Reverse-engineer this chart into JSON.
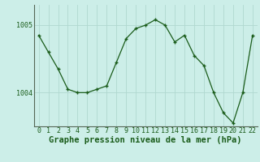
{
  "x": [
    0,
    1,
    2,
    3,
    4,
    5,
    6,
    7,
    8,
    9,
    10,
    11,
    12,
    13,
    14,
    15,
    16,
    17,
    18,
    19,
    20,
    21,
    22
  ],
  "y": [
    1004.85,
    1004.6,
    1004.35,
    1004.05,
    1004.0,
    1004.0,
    1004.05,
    1004.1,
    1004.45,
    1004.8,
    1004.95,
    1005.0,
    1005.08,
    1005.0,
    1004.75,
    1004.85,
    1004.55,
    1004.4,
    1004.0,
    1003.7,
    1003.55,
    1004.0,
    1004.85
  ],
  "line_color": "#1a5c1a",
  "marker": "+",
  "bg_color": "#cceee8",
  "grid_color": "#b0d8d0",
  "xlabel": "Graphe pression niveau de la mer (hPa)",
  "xlabel_fontsize": 7.5,
  "yticks": [
    1004,
    1005
  ],
  "ylim": [
    1003.5,
    1005.3
  ],
  "xlim": [
    -0.5,
    22.5
  ],
  "xticks": [
    0,
    1,
    2,
    3,
    4,
    5,
    6,
    7,
    8,
    9,
    10,
    11,
    12,
    13,
    14,
    15,
    16,
    17,
    18,
    19,
    20,
    21,
    22
  ],
  "tick_fontsize": 6,
  "figsize": [
    3.2,
    2.0
  ],
  "dpi": 100
}
